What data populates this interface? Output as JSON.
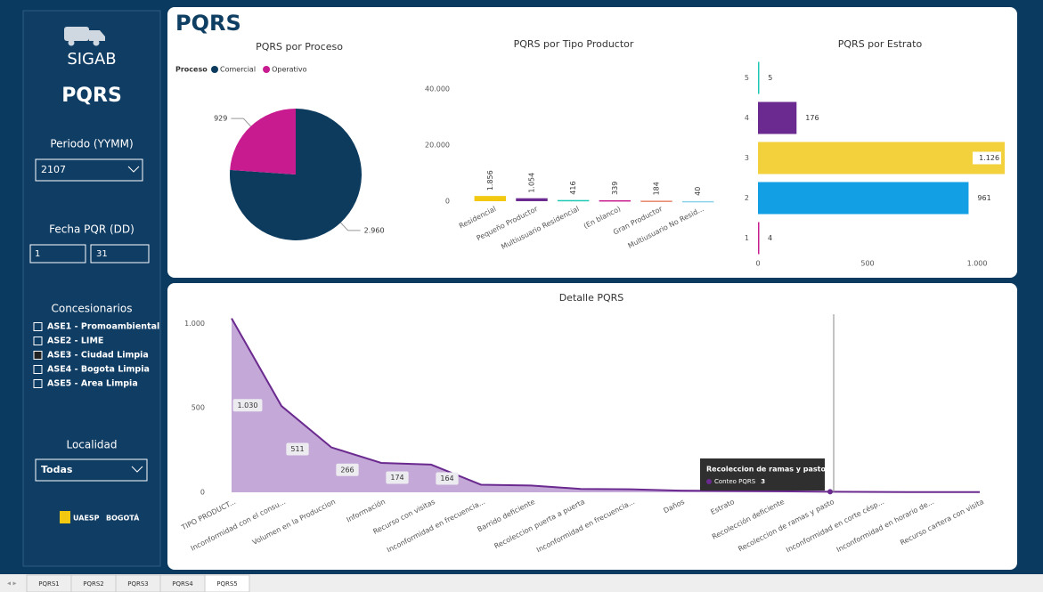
{
  "page_title": "PQRS",
  "sidebar": {
    "logo": "SIGAB",
    "title": "PQRS",
    "periodo_label": "Periodo (YYMM)",
    "periodo_value": "2107",
    "fecha_label": "Fecha PQR (DD)",
    "fecha_from": "1",
    "fecha_to": "31",
    "concesionarios_label": "Concesionarios",
    "concesionarios": [
      {
        "label": "ASE1 - Promoambiental",
        "checked": false
      },
      {
        "label": "ASE2 - LIME",
        "checked": false
      },
      {
        "label": "ASE3 - Ciudad Limpia",
        "checked": true
      },
      {
        "label": "ASE4 - Bogota Limpia",
        "checked": false
      },
      {
        "label": "ASE5 - Area Limpia",
        "checked": false
      }
    ],
    "localidad_label": "Localidad",
    "localidad_value": "Todas",
    "footer_logos": [
      "UAESP",
      "BOGOTÁ"
    ]
  },
  "chart_data": [
    {
      "type": "pie",
      "title": "PQRS por Proceso",
      "legend_title": "Proceso",
      "categories": [
        "Comercial",
        "Operativo"
      ],
      "values": [
        2960,
        929
      ],
      "value_labels": [
        "2.960",
        "929"
      ],
      "colors": [
        "#0d3b5e",
        "#c81b8f"
      ]
    },
    {
      "type": "bar",
      "title": "PQRS por Tipo Productor",
      "categories": [
        "Residencial",
        "Pequeño Productor",
        "Multiusuario Residencial",
        "(En blanco)",
        "Gran Productor",
        "Multiusuario No Resid..."
      ],
      "values": [
        1856,
        1054,
        416,
        339,
        184,
        40
      ],
      "value_labels": [
        "1.856",
        "1.054",
        "416",
        "339",
        "184",
        "40"
      ],
      "colors": [
        "#f2c811",
        "#6b2a8f",
        "#1fc8b4",
        "#c81b8f",
        "#e8866a",
        "#8ad4eb"
      ],
      "ylim": [
        0,
        48000
      ],
      "yticks": [
        0,
        {
          "value": 20000,
          "label": "20.000"
        },
        {
          "value": 40000,
          "label": "40.000"
        }
      ]
    },
    {
      "type": "hbar",
      "title": "PQRS por Estrato",
      "categories": [
        "5",
        "4",
        "3",
        "2",
        "1"
      ],
      "values": [
        5,
        176,
        1126,
        961,
        4
      ],
      "value_labels": [
        "5",
        "176",
        "1.126",
        "961",
        "4"
      ],
      "colors": [
        "#1fc8b4",
        "#6b2a8f",
        "#f2d13d",
        "#129fe3",
        "#c81b8f"
      ],
      "xlim": [
        0,
        1134
      ],
      "xticks": [
        0,
        500,
        {
          "value": 1000,
          "label": "1.000"
        }
      ]
    },
    {
      "type": "area",
      "title": "Detalle PQRS",
      "categories": [
        "TIPO PRODUCT...",
        "Inconformidad con el consu...",
        "Volumen en la Produccion",
        "Información",
        "Recurso con visitas",
        "Inconformidad en frecuencia...",
        "Barrido deficiente",
        "Recoleccion puerta a puerta",
        "Inconformidad en frecuencia...",
        "Daños",
        "Estrato",
        "Recolección deficiente",
        "Recoleccion de ramas y pasto",
        "Inconformidad en corte césp...",
        "Inconformidad en horario de...",
        "Recurso cartera con visita"
      ],
      "series": [
        {
          "name": "Conteo PQRS",
          "color": "#6b2a8f",
          "fill": "#c4a8d8",
          "values": [
            1030,
            511,
            266,
            174,
            164,
            45,
            40,
            20,
            18,
            10,
            8,
            6,
            3,
            2,
            1,
            1
          ],
          "value_labels": [
            "1.030",
            "511",
            "266",
            "174",
            "164",
            null,
            null,
            null,
            null,
            null,
            null,
            null,
            null,
            null,
            null,
            null
          ]
        }
      ],
      "ylim": [
        0,
        1070
      ],
      "yticks": [
        0,
        500,
        {
          "value": 1000,
          "label": "1.000"
        }
      ],
      "tooltip": {
        "index": 12
      }
    }
  ],
  "tabs": {
    "items": [
      "PQRS1",
      "PQRS2",
      "PQRS3",
      "PQRS4",
      "PQRS5"
    ],
    "active": 4
  }
}
